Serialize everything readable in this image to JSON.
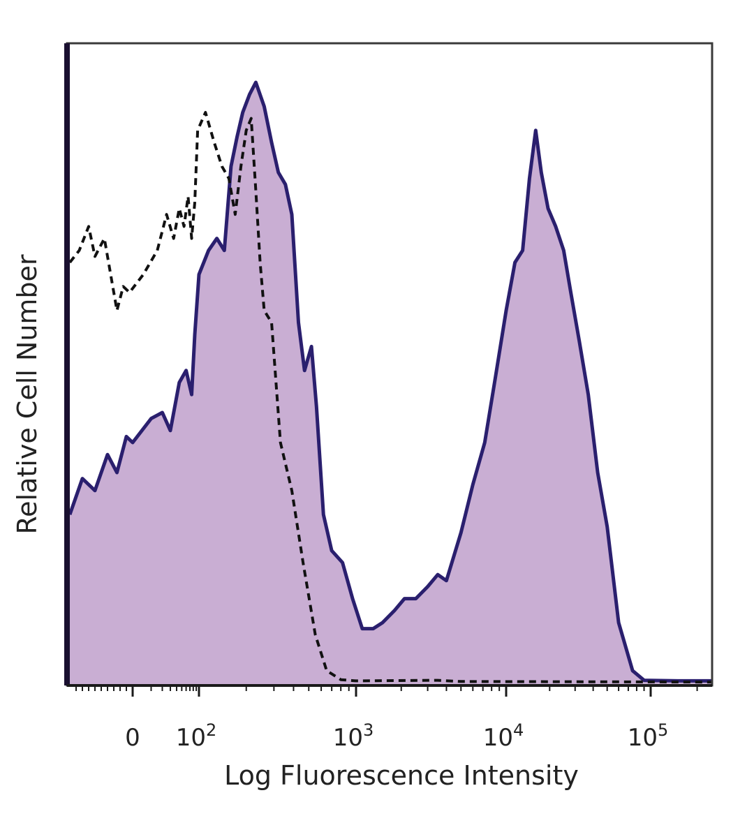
{
  "chart_data": {
    "type": "area",
    "title": "",
    "xlabel": "Log Fluorescence Intensity",
    "ylabel": "Relative Cell Number",
    "x_scale": "biexponential",
    "x_ticks": [
      {
        "value": 0,
        "label": "0",
        "base": "",
        "exp": ""
      },
      {
        "value": 100,
        "label": "10^2",
        "base": "10",
        "exp": "2"
      },
      {
        "value": 1000,
        "label": "10^3",
        "base": "10",
        "exp": "3"
      },
      {
        "value": 10000,
        "label": "10^4",
        "base": "10",
        "exp": "4"
      },
      {
        "value": 100000,
        "label": "10^5",
        "base": "10",
        "exp": "5"
      }
    ],
    "xlim": [
      -100,
      250000
    ],
    "ylim": [
      0,
      100
    ],
    "grid": false,
    "legend": "none",
    "colors": {
      "fill": "#c9aed3",
      "outline": "#2a1f6e",
      "control": "#111111"
    },
    "series": [
      {
        "style": "filled-solid",
        "points": [
          [
            -100,
            28
          ],
          [
            -80,
            34
          ],
          [
            -60,
            32
          ],
          [
            -40,
            38
          ],
          [
            -25,
            35
          ],
          [
            -10,
            41
          ],
          [
            0,
            40
          ],
          [
            10,
            44
          ],
          [
            20,
            45
          ],
          [
            30,
            42
          ],
          [
            45,
            50
          ],
          [
            60,
            52
          ],
          [
            75,
            48
          ],
          [
            85,
            58
          ],
          [
            100,
            68
          ],
          [
            115,
            72
          ],
          [
            130,
            74
          ],
          [
            145,
            72
          ],
          [
            160,
            86
          ],
          [
            175,
            91
          ],
          [
            190,
            95
          ],
          [
            210,
            98
          ],
          [
            230,
            100
          ],
          [
            260,
            96
          ],
          [
            290,
            90
          ],
          [
            320,
            85
          ],
          [
            355,
            83
          ],
          [
            390,
            78
          ],
          [
            430,
            60
          ],
          [
            470,
            52
          ],
          [
            520,
            56
          ],
          [
            560,
            46
          ],
          [
            620,
            28
          ],
          [
            700,
            22
          ],
          [
            820,
            20
          ],
          [
            950,
            14
          ],
          [
            1100,
            9
          ],
          [
            1300,
            9
          ],
          [
            1500,
            10
          ],
          [
            1800,
            12
          ],
          [
            2100,
            14
          ],
          [
            2500,
            14
          ],
          [
            3000,
            16
          ],
          [
            3500,
            18
          ],
          [
            4000,
            17
          ],
          [
            5000,
            25
          ],
          [
            6000,
            33
          ],
          [
            7200,
            40
          ],
          [
            8500,
            51
          ],
          [
            10000,
            62
          ],
          [
            11500,
            70
          ],
          [
            13000,
            72
          ],
          [
            14500,
            84
          ],
          [
            16000,
            92
          ],
          [
            17500,
            85
          ],
          [
            19500,
            79
          ],
          [
            22000,
            76
          ],
          [
            25000,
            72
          ],
          [
            28000,
            65
          ],
          [
            32000,
            57
          ],
          [
            37000,
            48
          ],
          [
            43000,
            35
          ],
          [
            50000,
            26
          ],
          [
            60000,
            10
          ],
          [
            75000,
            2
          ],
          [
            90000,
            0.4
          ],
          [
            150000,
            0.3
          ],
          [
            250000,
            0.3
          ]
        ]
      },
      {
        "style": "dashed",
        "points": [
          [
            -100,
            70
          ],
          [
            -85,
            72
          ],
          [
            -70,
            76
          ],
          [
            -60,
            71
          ],
          [
            -45,
            74
          ],
          [
            -35,
            68
          ],
          [
            -25,
            62
          ],
          [
            -15,
            66
          ],
          [
            -5,
            65
          ],
          [
            5,
            68
          ],
          [
            15,
            72
          ],
          [
            25,
            78
          ],
          [
            35,
            74
          ],
          [
            45,
            79
          ],
          [
            55,
            76
          ],
          [
            65,
            81
          ],
          [
            75,
            74
          ],
          [
            85,
            80
          ],
          [
            95,
            92
          ],
          [
            110,
            95
          ],
          [
            125,
            90
          ],
          [
            140,
            86
          ],
          [
            155,
            84
          ],
          [
            170,
            78
          ],
          [
            185,
            86
          ],
          [
            200,
            92
          ],
          [
            215,
            94
          ],
          [
            230,
            82
          ],
          [
            245,
            70
          ],
          [
            260,
            62
          ],
          [
            290,
            60
          ],
          [
            330,
            40
          ],
          [
            390,
            32
          ],
          [
            460,
            20
          ],
          [
            550,
            8
          ],
          [
            650,
            2
          ],
          [
            800,
            0.5
          ],
          [
            1000,
            0.3
          ],
          [
            3500,
            0.4
          ],
          [
            5000,
            0.2
          ],
          [
            250000,
            0.1
          ]
        ]
      }
    ]
  }
}
